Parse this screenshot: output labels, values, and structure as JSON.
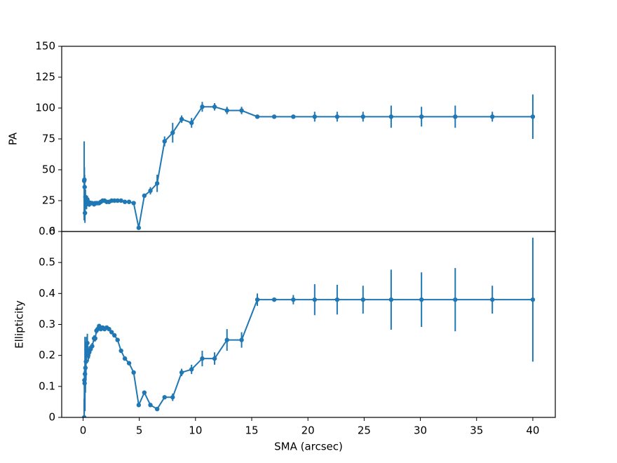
{
  "chart_data": [
    {
      "type": "line",
      "ylabel": "PA",
      "x": [
        0.1,
        0.12,
        0.14,
        0.17,
        0.21,
        0.26,
        0.31,
        0.38,
        0.46,
        0.55,
        0.67,
        0.81,
        0.98,
        1.08,
        1.19,
        1.3,
        1.43,
        1.58,
        1.74,
        1.91,
        2.1,
        2.31,
        2.54,
        2.79,
        3.07,
        3.38,
        3.72,
        4.09,
        4.5,
        4.95,
        5.45,
        5.99,
        6.59,
        7.25,
        7.97,
        8.77,
        9.65,
        10.6,
        11.7,
        12.8,
        14.1,
        15.5,
        17.0,
        18.7,
        20.6,
        22.6,
        24.9,
        27.4,
        30.1,
        33.1,
        36.4,
        40.0
      ],
      "series": [
        {
          "color": "#1f77b4",
          "values": [
            41,
            42,
            36,
            15,
            28,
            24,
            22,
            26,
            24,
            22,
            23,
            23,
            22,
            23,
            23,
            23,
            23,
            24,
            25,
            25,
            24,
            24,
            25,
            25,
            25,
            25,
            24,
            24,
            23,
            3,
            29,
            33,
            39,
            73,
            80,
            91,
            88,
            101,
            101,
            98,
            98,
            93,
            93,
            93,
            93,
            93,
            93,
            93,
            93,
            93,
            93,
            93
          ],
          "errors": [
            32,
            10,
            10,
            8,
            6,
            5,
            4,
            3,
            2,
            2,
            2,
            1,
            1,
            1,
            1,
            1,
            1,
            1,
            1,
            1,
            1,
            1,
            1,
            1,
            1,
            1,
            1,
            1,
            1,
            1,
            1,
            3,
            7,
            4,
            8,
            3,
            4,
            4,
            3,
            3,
            3,
            1,
            1,
            1,
            4,
            4,
            4,
            9,
            8,
            9,
            4,
            18
          ]
        }
      ],
      "xlim": [
        -1.9,
        42.0
      ],
      "ylim": [
        0,
        150
      ],
      "yticks": [
        0,
        25,
        50,
        75,
        100,
        125,
        150
      ]
    },
    {
      "type": "line",
      "xlabel": "SMA (arcsec)",
      "ylabel": "Ellipticity",
      "x": [
        0.1,
        0.12,
        0.14,
        0.17,
        0.21,
        0.26,
        0.31,
        0.38,
        0.46,
        0.55,
        0.67,
        0.81,
        0.98,
        1.08,
        1.19,
        1.3,
        1.43,
        1.58,
        1.74,
        1.91,
        2.1,
        2.31,
        2.54,
        2.79,
        3.07,
        3.38,
        3.72,
        4.09,
        4.5,
        4.95,
        5.45,
        5.99,
        6.59,
        7.25,
        7.97,
        8.77,
        9.65,
        10.6,
        11.7,
        12.8,
        14.1,
        15.5,
        17.0,
        18.7,
        20.6,
        22.6,
        24.9,
        27.4,
        30.1,
        33.1,
        36.4,
        40.0
      ],
      "series": [
        {
          "color": "#1f77b4",
          "values": [
            0.0,
            0.12,
            0.11,
            0.14,
            0.16,
            0.18,
            0.22,
            0.24,
            0.2,
            0.21,
            0.22,
            0.23,
            0.255,
            0.255,
            0.28,
            0.285,
            0.295,
            0.285,
            0.29,
            0.285,
            0.29,
            0.285,
            0.275,
            0.265,
            0.25,
            0.215,
            0.19,
            0.175,
            0.145,
            0.04,
            0.08,
            0.04,
            0.027,
            0.065,
            0.065,
            0.145,
            0.155,
            0.19,
            0.19,
            0.25,
            0.25,
            0.38,
            0.38,
            0.38,
            0.38,
            0.38,
            0.38,
            0.38,
            0.38,
            0.38,
            0.38,
            0.38
          ],
          "errors": [
            0.06,
            0.03,
            0.05,
            0.12,
            0.08,
            0.06,
            0.04,
            0.03,
            0.02,
            0.02,
            0.01,
            0.01,
            0.01,
            0.01,
            0.01,
            0.01,
            0.005,
            0.005,
            0.005,
            0.005,
            0.005,
            0.005,
            0.005,
            0.005,
            0.005,
            0.005,
            0.005,
            0.005,
            0.005,
            0.005,
            0.005,
            0.005,
            0.005,
            0.005,
            0.012,
            0.012,
            0.015,
            0.025,
            0.02,
            0.035,
            0.025,
            0.02,
            0.005,
            0.015,
            0.05,
            0.048,
            0.045,
            0.097,
            0.088,
            0.102,
            0.045,
            0.2
          ]
        }
      ],
      "xlim": [
        -1.9,
        42.0
      ],
      "xticks": [
        0,
        5,
        10,
        15,
        20,
        25,
        30,
        35,
        40
      ],
      "ylim": [
        0,
        0.6
      ],
      "yticks": [
        0.0,
        0.1,
        0.2,
        0.3,
        0.4,
        0.5,
        0.6
      ]
    }
  ]
}
